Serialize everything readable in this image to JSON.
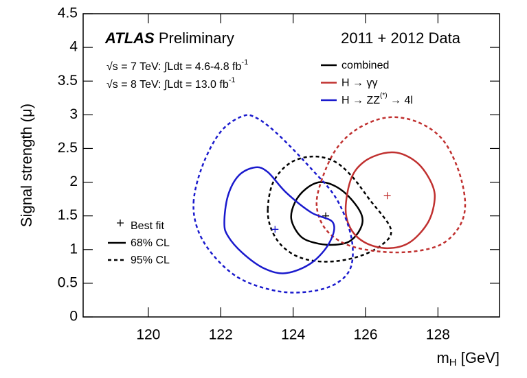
{
  "chart_data": {
    "type": "contour",
    "ylabel": "Signal strength (μ)",
    "xlabel": {
      "main": "m",
      "sub": "H",
      "rest": " [GeV]"
    },
    "xlim": [
      118.2,
      129.7
    ],
    "ylim": [
      0,
      4.5
    ],
    "xticks": [
      120,
      122,
      124,
      126,
      128
    ],
    "yticks": [
      0,
      0.5,
      1,
      1.5,
      2,
      2.5,
      3,
      3.5,
      4,
      4.5
    ],
    "grid": false,
    "annotations": {
      "experiment": "ATLAS",
      "status": "Preliminary",
      "data_label": "2011 + 2012 Data",
      "energy_lines": [
        {
          "text": "√s = 7 TeV: ∫Ldt = 4.6-4.8 fb",
          "sup": "-1"
        },
        {
          "text": "√s = 8 TeV: ∫Ldt = 13.0 fb",
          "sup": "-1"
        }
      ]
    },
    "cl_legend": {
      "best_fit": "Best fit",
      "cl68": "68% CL",
      "cl95": "95% CL"
    },
    "series": [
      {
        "name": "combined",
        "color": "#000000",
        "best_fit": {
          "x": 124.9,
          "y": 1.5
        },
        "cl68": {
          "x": [
            123.95,
            124.05,
            124.35,
            124.75,
            125.2,
            125.6,
            125.9,
            125.85,
            125.55,
            125.1,
            124.6,
            124.2,
            123.95
          ],
          "y": [
            1.45,
            1.7,
            1.9,
            2.0,
            1.93,
            1.75,
            1.5,
            1.3,
            1.12,
            1.07,
            1.1,
            1.2,
            1.45
          ]
        },
        "cl95": {
          "x": [
            123.3,
            123.45,
            123.9,
            124.5,
            125.1,
            125.6,
            126.1,
            126.7,
            126.4,
            125.7,
            124.9,
            124.2,
            123.7,
            123.4,
            123.3
          ],
          "y": [
            1.6,
            2.0,
            2.28,
            2.38,
            2.32,
            2.1,
            1.75,
            1.3,
            1.05,
            0.88,
            0.82,
            0.88,
            1.05,
            1.3,
            1.6
          ]
        }
      },
      {
        "name": "H → γγ",
        "color": "#c0302f",
        "best_fit": {
          "x": 126.6,
          "y": 1.8
        },
        "cl68": {
          "x": [
            125.45,
            125.6,
            125.95,
            126.5,
            127.0,
            127.5,
            127.85,
            127.9,
            127.7,
            127.2,
            126.6,
            126.0,
            125.6,
            125.45
          ],
          "y": [
            1.6,
            2.05,
            2.3,
            2.43,
            2.42,
            2.25,
            1.95,
            1.7,
            1.38,
            1.1,
            1.02,
            1.1,
            1.3,
            1.6
          ]
        },
        "cl95": {
          "x": [
            124.65,
            124.8,
            125.2,
            125.8,
            126.6,
            127.4,
            128.1,
            128.55,
            128.75,
            128.6,
            128.1,
            127.3,
            126.4,
            125.5,
            124.9,
            124.65
          ],
          "y": [
            1.65,
            2.05,
            2.5,
            2.8,
            2.96,
            2.9,
            2.65,
            2.2,
            1.7,
            1.35,
            1.08,
            0.97,
            0.97,
            1.07,
            1.3,
            1.65
          ]
        }
      },
      {
        "name": "H → ZZ",
        "name_sup": "(*)",
        "name_rest": " → 4l",
        "color": "#1a1acd",
        "best_fit": {
          "x": 123.5,
          "y": 1.3
        },
        "cl68": {
          "x": [
            122.1,
            122.2,
            122.5,
            122.95,
            123.3,
            123.8,
            124.5,
            125.1,
            125.0,
            124.5,
            123.8,
            123.2,
            122.6,
            122.2,
            122.1
          ],
          "y": [
            1.4,
            1.8,
            2.1,
            2.22,
            2.15,
            1.85,
            1.55,
            1.4,
            1.1,
            0.8,
            0.65,
            0.72,
            0.95,
            1.2,
            1.4
          ]
        },
        "cl95": {
          "x": [
            121.25,
            121.5,
            122.0,
            122.6,
            123.0,
            123.6,
            124.5,
            125.2,
            125.6,
            125.6,
            125.2,
            124.5,
            123.6,
            122.6,
            121.9,
            121.4,
            121.25
          ],
          "y": [
            1.7,
            2.25,
            2.75,
            2.98,
            2.95,
            2.7,
            2.2,
            1.75,
            1.2,
            0.75,
            0.5,
            0.38,
            0.38,
            0.55,
            0.85,
            1.25,
            1.7
          ]
        }
      }
    ]
  }
}
